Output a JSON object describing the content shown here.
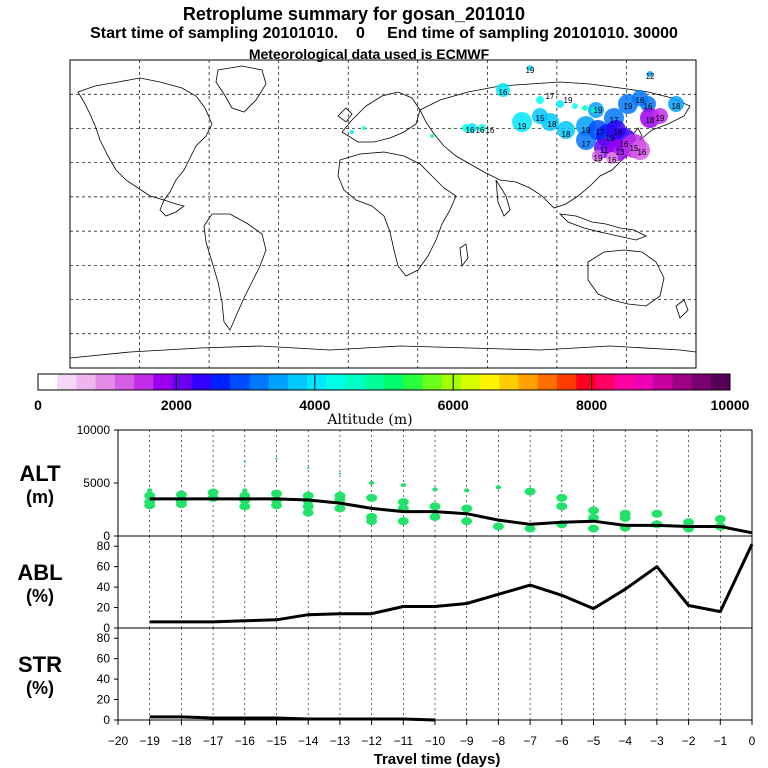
{
  "header": {
    "title": "Retroplume summary for gosan_201010",
    "line2": "Start time of sampling 20101010.    0     End time of sampling 20101010. 30000",
    "line3": "Meteorological data used is ECMWF"
  },
  "colorbar": {
    "label": "Altitude  (m)",
    "ticks": [
      "0",
      "2000",
      "4000",
      "6000",
      "8000",
      "10000"
    ],
    "colors": [
      "#ffffff",
      "#f5d6f5",
      "#eeb6ef",
      "#e58ae9",
      "#d55ee7",
      "#c42ee8",
      "#9b00ee",
      "#6a00f4",
      "#3200ff",
      "#0021ff",
      "#004dff",
      "#0077ff",
      "#00a1ff",
      "#00c8ff",
      "#00e7ff",
      "#00ffe8",
      "#00ffc4",
      "#00ff9a",
      "#00ff6e",
      "#2aff3e",
      "#69ff1a",
      "#a4ff00",
      "#d6ff00",
      "#fff300",
      "#ffcc00",
      "#ff9f00",
      "#ff6f00",
      "#ff3c00",
      "#ff0022",
      "#ff0066",
      "#ff00a3",
      "#ee00b4",
      "#c6009e",
      "#a00086",
      "#7a0070",
      "#560058"
    ]
  },
  "map": {
    "annotations": [
      "19",
      "12",
      "16",
      "16",
      "16",
      "16",
      "19",
      "15",
      "18",
      "18",
      "19",
      "19",
      "17",
      "19",
      "16",
      "16",
      "18",
      "17",
      "17",
      "19",
      "18",
      "16",
      "11",
      "13",
      "15",
      "16",
      "18",
      "19",
      "19",
      "16",
      "17",
      "19"
    ]
  },
  "chart_data": [
    {
      "type": "line",
      "panel": "ALT",
      "ylabel": "ALT",
      "yunit": "(m)",
      "ylim": [
        0,
        10000
      ],
      "yticks": [
        "0",
        "5000",
        "10000"
      ],
      "x": [
        -19,
        -18,
        -17,
        -16,
        -15,
        -14,
        -13,
        -12,
        -11,
        -10,
        -9,
        -8,
        -7,
        -6,
        -5,
        -4,
        -3,
        -2,
        -1,
        0
      ],
      "values": [
        3500,
        3500,
        3500,
        3500,
        3500,
        3400,
        3100,
        2600,
        2300,
        2300,
        2100,
        1500,
        1100,
        1300,
        1400,
        1000,
        1000,
        900,
        900,
        300
      ],
      "scatter": [
        {
          "x": -19,
          "y": 3800
        },
        {
          "x": -19,
          "y": 3200
        },
        {
          "x": -19,
          "y": 2900
        },
        {
          "x": -19,
          "y": 4300
        },
        {
          "x": -18,
          "y": 3900
        },
        {
          "x": -18,
          "y": 3300
        },
        {
          "x": -18,
          "y": 3000
        },
        {
          "x": -17,
          "y": 4100
        },
        {
          "x": -17,
          "y": 3600
        },
        {
          "x": -16,
          "y": 4300
        },
        {
          "x": -16,
          "y": 3800
        },
        {
          "x": -16,
          "y": 3400
        },
        {
          "x": -16,
          "y": 2800
        },
        {
          "x": -16,
          "y": 7000
        },
        {
          "x": -15,
          "y": 4000
        },
        {
          "x": -15,
          "y": 3400
        },
        {
          "x": -15,
          "y": 2900
        },
        {
          "x": -15,
          "y": 7300
        },
        {
          "x": -14,
          "y": 3800
        },
        {
          "x": -14,
          "y": 3300
        },
        {
          "x": -14,
          "y": 2800
        },
        {
          "x": -14,
          "y": 2200
        },
        {
          "x": -14,
          "y": 6400
        },
        {
          "x": -13,
          "y": 3800
        },
        {
          "x": -13,
          "y": 3400
        },
        {
          "x": -13,
          "y": 2600
        },
        {
          "x": -13,
          "y": 5900
        },
        {
          "x": -12,
          "y": 3600
        },
        {
          "x": -12,
          "y": 1800
        },
        {
          "x": -12,
          "y": 1400
        },
        {
          "x": -12,
          "y": 5000
        },
        {
          "x": -11,
          "y": 3200
        },
        {
          "x": -11,
          "y": 2600
        },
        {
          "x": -11,
          "y": 1400
        },
        {
          "x": -11,
          "y": 4800
        },
        {
          "x": -10,
          "y": 2800
        },
        {
          "x": -10,
          "y": 1800
        },
        {
          "x": -10,
          "y": 4400
        },
        {
          "x": -9,
          "y": 2600
        },
        {
          "x": -9,
          "y": 1400
        },
        {
          "x": -9,
          "y": 4300
        },
        {
          "x": -8,
          "y": 900
        },
        {
          "x": -8,
          "y": 4600
        },
        {
          "x": -7,
          "y": 700
        },
        {
          "x": -7,
          "y": 4200
        },
        {
          "x": -6,
          "y": 1100
        },
        {
          "x": -6,
          "y": 2800
        },
        {
          "x": -6,
          "y": 3600
        },
        {
          "x": -5,
          "y": 2400
        },
        {
          "x": -5,
          "y": 1700
        },
        {
          "x": -5,
          "y": 700
        },
        {
          "x": -4,
          "y": 1700
        },
        {
          "x": -4,
          "y": 800
        },
        {
          "x": -4,
          "y": 2100
        },
        {
          "x": -3,
          "y": 1100
        },
        {
          "x": -3,
          "y": 2100
        },
        {
          "x": -2,
          "y": 1300
        },
        {
          "x": -2,
          "y": 700
        },
        {
          "x": -1,
          "y": 1600
        },
        {
          "x": -1,
          "y": 900
        }
      ]
    },
    {
      "type": "line",
      "panel": "ABL",
      "ylabel": "ABL",
      "yunit": "(%)",
      "ylim": [
        0,
        90
      ],
      "yticks": [
        "0",
        "20",
        "40",
        "60",
        "80"
      ],
      "x": [
        -19,
        -18,
        -17,
        -16,
        -15,
        -14,
        -13,
        -12,
        -11,
        -10,
        -9,
        -8,
        -7,
        -6,
        -5,
        -4,
        -3,
        -2,
        -1,
        0
      ],
      "values": [
        6,
        6,
        6,
        7,
        8,
        13,
        14,
        14,
        21,
        21,
        24,
        33,
        42,
        32,
        19,
        38,
        60,
        22,
        16,
        82
      ]
    },
    {
      "type": "line",
      "panel": "STR",
      "ylabel": "STR",
      "yunit": "(%)",
      "ylim": [
        0,
        90
      ],
      "yticks": [
        "0",
        "20",
        "40",
        "60",
        "80"
      ],
      "x": [
        -19,
        -18,
        -17,
        -16,
        -15,
        -14,
        -13,
        -12,
        -11,
        -10
      ],
      "values": [
        3,
        3,
        2,
        2,
        2,
        1,
        1,
        1,
        1,
        0
      ]
    }
  ],
  "xaxis": {
    "label": "Travel time (days)",
    "ticks": [
      "−20",
      "−19",
      "−18",
      "−17",
      "−16",
      "−15",
      "−14",
      "−13",
      "−12",
      "−11",
      "−10",
      "−9",
      "−8",
      "−7",
      "−6",
      "−5",
      "−4",
      "−3",
      "−2",
      "−1",
      "0"
    ]
  }
}
